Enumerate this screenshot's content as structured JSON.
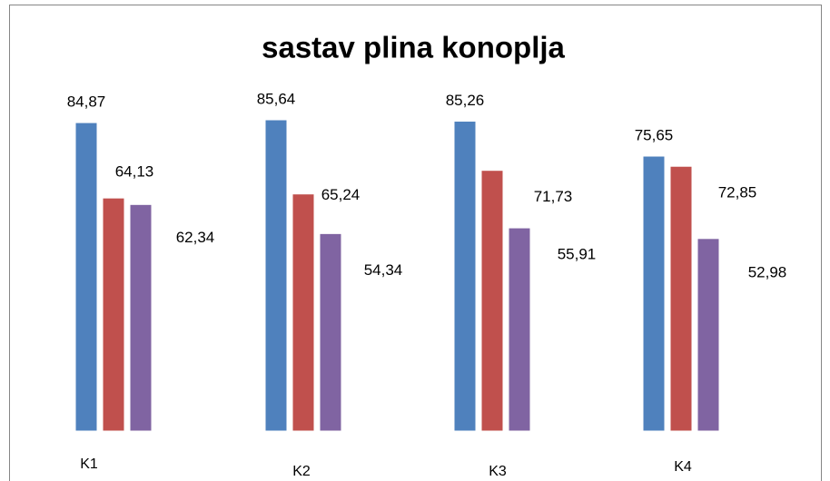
{
  "chart_data": {
    "type": "bar",
    "title": "sastav plina konoplja",
    "categories": [
      "K1",
      "K2",
      "K3",
      "K4"
    ],
    "series": [
      {
        "color": "#4f81bd",
        "values": [
          84.87,
          85.64,
          85.26,
          75.65
        ],
        "value_labels": [
          "84,87",
          "85,64",
          "85,26",
          "75,65"
        ]
      },
      {
        "color": "#c0504d",
        "values": [
          64.13,
          65.24,
          71.73,
          72.85
        ],
        "value_labels": [
          "64,13",
          "65,24",
          "71,73",
          "72,85"
        ]
      },
      {
        "color": "#8064a2",
        "values": [
          62.34,
          54.34,
          55.91,
          52.98
        ],
        "value_labels": [
          "62,34",
          "54,34",
          "55,91",
          "52,98"
        ]
      }
    ]
  }
}
